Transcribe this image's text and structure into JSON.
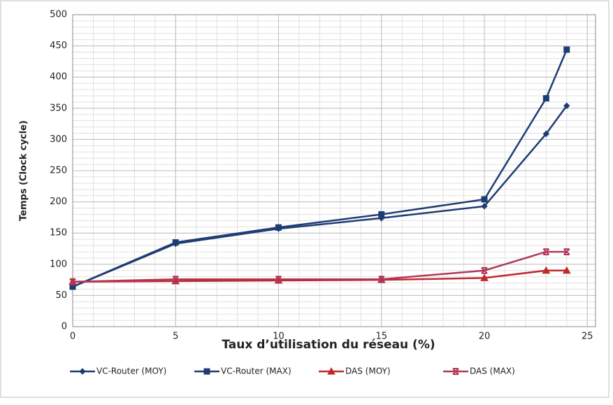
{
  "chart_data": {
    "type": "line",
    "x_label": "Taux d’utilisation du réseau (%)",
    "y_label": "Temps (Clock cycle)",
    "x": [
      0,
      5,
      10,
      15,
      20,
      23,
      24
    ],
    "series": [
      {
        "name": "VC-Router (MOY)",
        "color": "#1f3c73",
        "marker": "diamond",
        "values": [
          64,
          133,
          157,
          174,
          193,
          309,
          354
        ]
      },
      {
        "name": "VC-Router (MAX)",
        "color": "#1f3c73",
        "marker": "square",
        "values": [
          64,
          135,
          159,
          180,
          204,
          366,
          444
        ]
      },
      {
        "name": "DAS (MOY)",
        "color": "#c0282d",
        "marker": "triangle",
        "values": [
          72,
          73,
          74,
          75,
          78,
          90,
          90
        ]
      },
      {
        "name": "DAS (MAX)",
        "color": "#b03858",
        "marker": "star",
        "values": [
          72,
          76,
          76,
          76,
          90,
          120,
          120
        ]
      }
    ],
    "xlim": [
      0,
      25.4
    ],
    "xticks": [
      0,
      5,
      10,
      15,
      20,
      25
    ],
    "ylim": [
      0,
      500
    ],
    "yticks": [
      0,
      50,
      100,
      150,
      200,
      250,
      300,
      350,
      400,
      450,
      500
    ],
    "grid": true,
    "minor_grid": {
      "x": 1,
      "y": 10
    },
    "legend": "bottom"
  }
}
